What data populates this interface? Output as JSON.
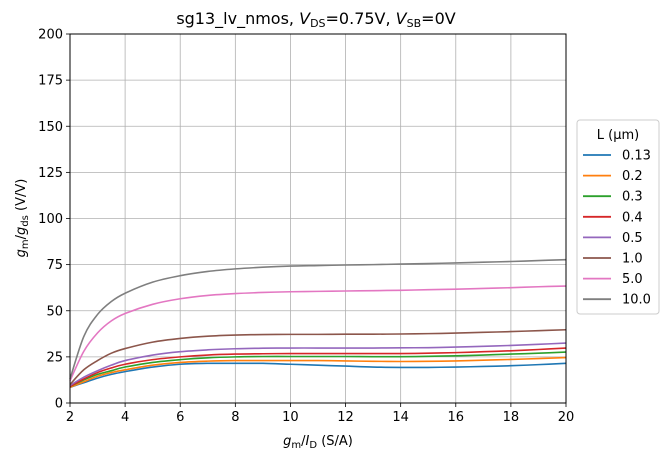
{
  "chart_data": {
    "type": "line",
    "title": "sg13_lv_nmos, V_DS=0.75V, V_SB=0V",
    "title_parts": {
      "prefix": "sg13_lv_nmos, ",
      "v1": "V",
      "v1_sub": "DS",
      "v1_val": "=0.75V, ",
      "v2": "V",
      "v2_sub": "SB",
      "v2_val": "=0V"
    },
    "xlabel": "g_m/I_D (S/A)",
    "xlabel_parts": {
      "a": "g",
      "a_sub": "m",
      "slash": "/",
      "b": "I",
      "b_sub": "D",
      "unit": " (S/A)"
    },
    "ylabel": "g_m/g_ds (V/V)",
    "ylabel_parts": {
      "a": "g",
      "a_sub": "m",
      "slash": "/",
      "b": "g",
      "b_sub": "ds",
      "unit": " (V/V)"
    },
    "xlim": [
      2,
      20
    ],
    "ylim": [
      0,
      200
    ],
    "xticks": [
      2,
      4,
      6,
      8,
      10,
      12,
      14,
      16,
      18,
      20
    ],
    "yticks": [
      0,
      25,
      50,
      75,
      100,
      125,
      150,
      175,
      200
    ],
    "grid": true,
    "legend_title": "L (µm)",
    "legend_placement": "outside-right",
    "x": [
      2,
      2.5,
      3,
      3.5,
      4,
      5,
      6,
      7,
      8,
      9,
      10,
      11,
      12,
      13,
      14,
      15,
      16,
      17,
      18,
      19,
      20
    ],
    "series": [
      {
        "name": "0.13",
        "color": "#1f77b4",
        "values": [
          8.5,
          11,
          13.5,
          15.5,
          17,
          19.5,
          21,
          21.5,
          21.5,
          21.5,
          21,
          20.5,
          20,
          19.5,
          19.3,
          19.3,
          19.5,
          19.8,
          20.2,
          20.8,
          21.5
        ]
      },
      {
        "name": "0.2",
        "color": "#ff7f0e",
        "values": [
          8.5,
          11.5,
          14.5,
          16.5,
          18,
          20.5,
          22,
          22.7,
          23,
          23,
          23,
          23,
          22.8,
          22.6,
          22.5,
          22.6,
          22.8,
          23.2,
          23.6,
          24.1,
          24.6
        ]
      },
      {
        "name": "0.3",
        "color": "#2ca02c",
        "values": [
          9,
          12.5,
          15.5,
          17.5,
          19.5,
          22,
          23.5,
          24.5,
          25,
          25.2,
          25.2,
          25.2,
          25.2,
          25.1,
          25.1,
          25.3,
          25.6,
          26,
          26.5,
          27,
          27.6
        ]
      },
      {
        "name": "0.4",
        "color": "#d62728",
        "values": [
          9,
          13,
          16.5,
          19,
          21,
          23.5,
          25,
          26,
          26.5,
          26.7,
          26.8,
          26.8,
          26.8,
          26.8,
          26.8,
          27,
          27.3,
          27.8,
          28.3,
          29,
          29.8
        ]
      },
      {
        "name": "0.5",
        "color": "#9467bd",
        "values": [
          9.5,
          14,
          17.5,
          20.5,
          23,
          26,
          27.8,
          28.8,
          29.4,
          29.7,
          29.8,
          29.8,
          29.8,
          29.8,
          29.9,
          30,
          30.3,
          30.7,
          31.2,
          31.8,
          32.5
        ]
      },
      {
        "name": "1.0",
        "color": "#8c564b",
        "values": [
          10,
          18,
          23,
          27,
          29.5,
          33,
          35,
          36.2,
          36.8,
          37.1,
          37.2,
          37.2,
          37.3,
          37.3,
          37.4,
          37.6,
          37.9,
          38.3,
          38.7,
          39.2,
          39.7
        ]
      },
      {
        "name": "5.0",
        "color": "#e377c2",
        "values": [
          12,
          28,
          38,
          44.5,
          48.5,
          53.5,
          56.5,
          58.3,
          59.3,
          59.9,
          60.3,
          60.5,
          60.7,
          60.9,
          61.1,
          61.4,
          61.7,
          62.1,
          62.5,
          63,
          63.4
        ]
      },
      {
        "name": "10.0",
        "color": "#7f7f7f",
        "values": [
          13,
          36,
          48,
          55,
          59.5,
          65.5,
          69,
          71.3,
          72.7,
          73.6,
          74.2,
          74.5,
          74.8,
          75,
          75.3,
          75.6,
          75.9,
          76.3,
          76.7,
          77.2,
          77.7
        ]
      }
    ]
  }
}
